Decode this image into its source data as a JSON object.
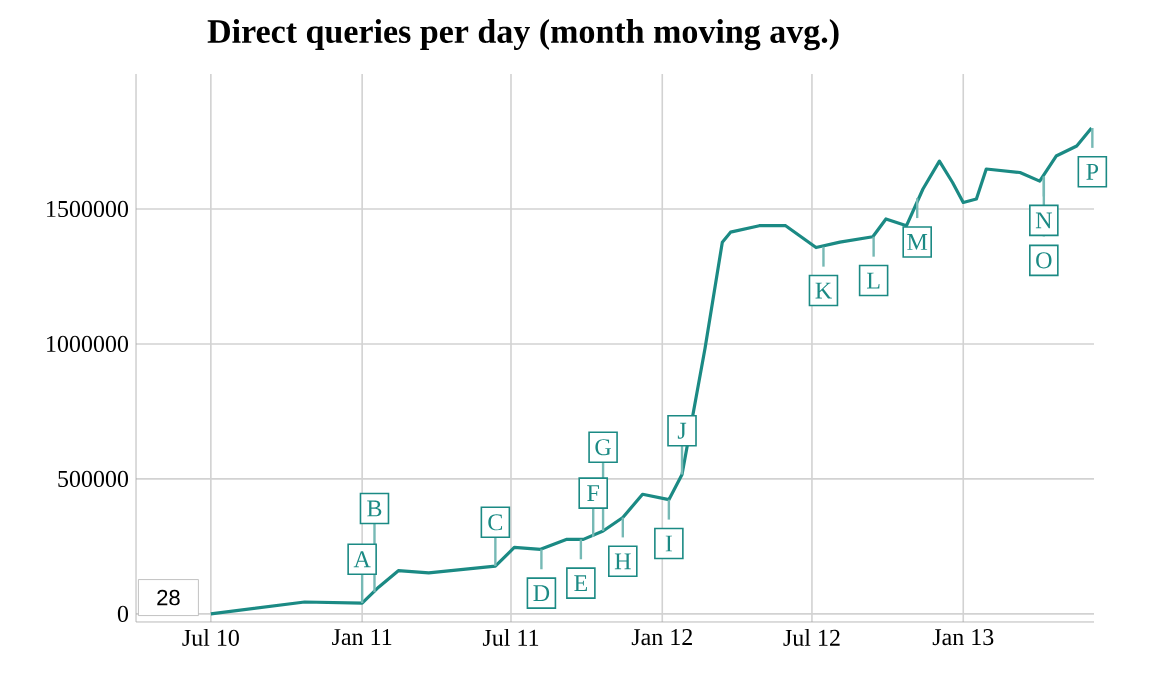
{
  "chart_data": {
    "type": "line",
    "title": "Direct queries per day (month moving avg.)",
    "x": [
      "2010-07-01",
      "2010-10-23",
      "2011-01-01",
      "2011-01-21",
      "2011-02-14",
      "2011-03-23",
      "2011-06-12",
      "2011-07-05",
      "2011-08-06",
      "2011-09-07",
      "2011-09-27",
      "2011-10-21",
      "2011-11-14",
      "2011-12-08",
      "2012-01-09",
      "2012-01-25",
      "2012-02-22",
      "2012-03-14",
      "2012-03-24",
      "2012-04-28",
      "2012-05-30",
      "2012-07-06",
      "2012-08-04",
      "2012-09-13",
      "2012-09-29",
      "2012-10-24",
      "2012-11-13",
      "2012-12-03",
      "2012-12-19",
      "2013-01-01",
      "2013-01-17",
      "2013-01-29",
      "2013-03-11",
      "2013-04-04",
      "2013-04-24",
      "2013-05-19",
      "2013-06-06"
    ],
    "series": [
      {
        "color": "#1b8a84",
        "values": [
          0,
          44000,
          40000,
          99000,
          160000,
          152000,
          177000,
          246000,
          239000,
          276000,
          276000,
          307000,
          357000,
          443000,
          423000,
          516000,
          984000,
          1377000,
          1414000,
          1438000,
          1438000,
          1357000,
          1377000,
          1397000,
          1463000,
          1438000,
          1574000,
          1677000,
          1598000,
          1524000,
          1537000,
          1648000,
          1635000,
          1603000,
          1696000,
          1733000,
          1800000
        ]
      }
    ],
    "xlim": [
      "2010-04-01",
      "2013-06-09"
    ],
    "xticks": [
      {
        "value": "2010-07-01",
        "label": "Jul 10"
      },
      {
        "value": "2011-01-01",
        "label": "Jan 11"
      },
      {
        "value": "2011-07-01",
        "label": "Jul 11"
      },
      {
        "value": "2012-01-01",
        "label": "Jan 12"
      },
      {
        "value": "2012-07-01",
        "label": "Jul 12"
      },
      {
        "value": "2013-01-01",
        "label": "Jan 13"
      }
    ],
    "ylim": [
      -30000,
      2000000
    ],
    "yticks": [
      0,
      500000,
      1000000,
      1500000
    ],
    "grid": true,
    "marker": "none",
    "line_style": "solid",
    "annotations": [
      "28",
      {
        "text": "A",
        "x": "2011-01-01",
        "y": 40000
      },
      {
        "text": "B",
        "x": "2011-01-16",
        "y": 80000
      },
      {
        "text": "C",
        "x": "2011-06-12",
        "y": 177000
      },
      {
        "text": "D",
        "x": "2011-08-07",
        "y": 239000
      },
      {
        "text": "E",
        "x": "2011-09-24",
        "y": 276000
      },
      {
        "text": "F",
        "x": "2011-10-09",
        "y": 285000
      },
      {
        "text": "G",
        "x": "2011-10-21",
        "y": 307000
      },
      {
        "text": "H",
        "x": "2011-11-14",
        "y": 357000
      },
      {
        "text": "I",
        "x": "2012-01-09",
        "y": 423000
      },
      {
        "text": "J",
        "x": "2012-01-25",
        "y": 516000
      },
      {
        "text": "K",
        "x": "2012-07-15",
        "y": 1360000
      },
      {
        "text": "L",
        "x": "2012-09-14",
        "y": 1397000
      },
      {
        "text": "M",
        "x": "2012-11-06",
        "y": 1540000
      },
      {
        "text": "N",
        "x": "2013-04-09",
        "y": 1620000
      },
      {
        "text": "O",
        "x": "2013-04-09",
        "y": 1620000
      },
      {
        "text": "P",
        "x": "2013-06-07",
        "y": 1800000
      }
    ]
  }
}
